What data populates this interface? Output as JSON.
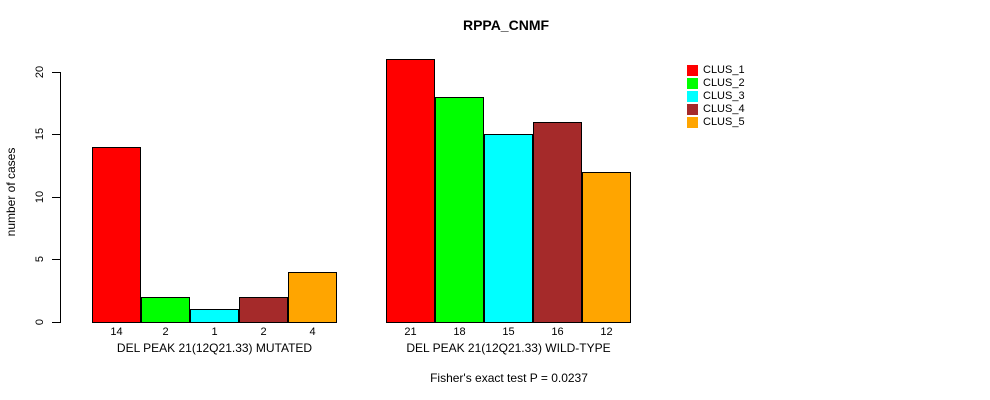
{
  "chart_data": {
    "type": "bar",
    "title": "RPPA_CNMF",
    "ylabel": "number of cases",
    "xlabel": "",
    "ylim": [
      0,
      21
    ],
    "yticks": [
      0,
      5,
      10,
      15,
      20
    ],
    "grid": false,
    "legend_position": "top-right",
    "categories": [
      "DEL PEAK 21(12Q21.33) MUTATED",
      "DEL PEAK 21(12Q21.33) WILD-TYPE"
    ],
    "series": [
      {
        "name": "CLUS_1",
        "color": "#ff0000",
        "values": [
          14,
          21
        ]
      },
      {
        "name": "CLUS_2",
        "color": "#00ff00",
        "values": [
          2,
          18
        ]
      },
      {
        "name": "CLUS_3",
        "color": "#00ffff",
        "values": [
          1,
          15
        ]
      },
      {
        "name": "CLUS_4",
        "color": "#a52a2a",
        "values": [
          2,
          16
        ]
      },
      {
        "name": "CLUS_5",
        "color": "#ffa500",
        "values": [
          4,
          12
        ]
      }
    ],
    "value_labels_shown": true,
    "footnote": "Fisher's exact test P = 0.0237",
    "axis_color": "#000000",
    "text_color": "#000000",
    "background": "#ffffff"
  }
}
